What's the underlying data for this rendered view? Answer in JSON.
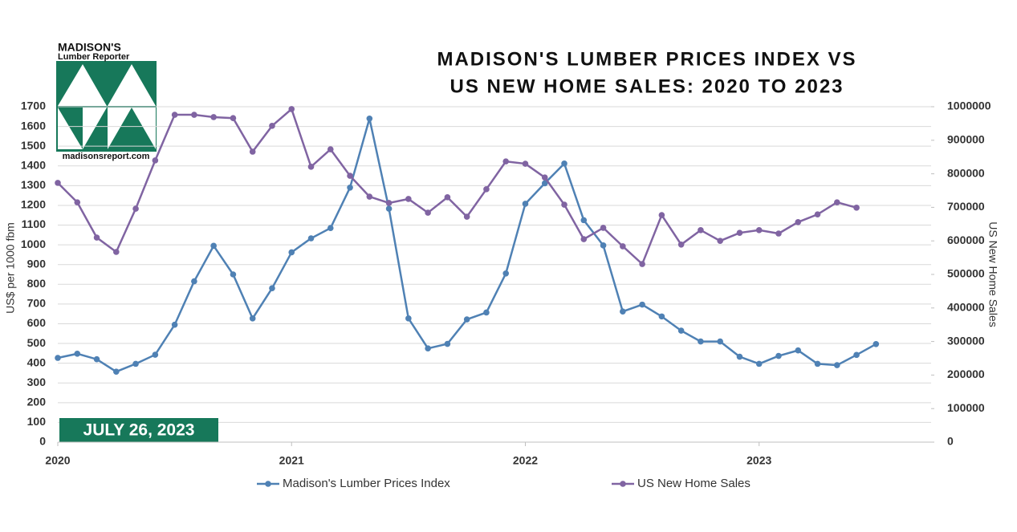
{
  "logo": {
    "name": "MADISON'S",
    "subtitle": "Lumber Reporter",
    "url": "madisonsreport.com"
  },
  "chart_data": {
    "type": "line",
    "title_lines": [
      "MADISON'S LUMBER PRICES INDEX VS",
      "US NEW HOME SALES: 2020 TO 2023"
    ],
    "date_label": "JULY 26, 2023",
    "ylabel": "US$ per 1000 fbm",
    "y2label": "US New Home Sales",
    "categories": [
      "2020",
      null,
      null,
      null,
      null,
      null,
      null,
      null,
      null,
      null,
      null,
      null,
      "2021",
      null,
      null,
      null,
      null,
      null,
      null,
      null,
      null,
      null,
      null,
      null,
      "2022",
      null,
      null,
      null,
      null,
      null,
      null,
      null,
      null,
      null,
      null,
      null,
      "2023",
      null,
      null,
      null,
      null,
      null,
      null
    ],
    "ylim": [
      0,
      1700
    ],
    "yticks": [
      0,
      100,
      200,
      300,
      400,
      500,
      600,
      700,
      800,
      900,
      1000,
      1100,
      1200,
      1300,
      1400,
      1500,
      1600,
      1700
    ],
    "y2lim": [
      0,
      1000000
    ],
    "y2ticks": [
      0,
      100000,
      200000,
      300000,
      400000,
      500000,
      600000,
      700000,
      800000,
      900000,
      1000000
    ],
    "grid": true,
    "legend": "bottom",
    "series": [
      {
        "name": "Madison's Lumber Prices Index",
        "color": "#4f81b4",
        "values": [
          427,
          448,
          420,
          357,
          397,
          443,
          595,
          815,
          995,
          850,
          627,
          780,
          962,
          1033,
          1085,
          1290,
          1640,
          1183,
          627,
          475,
          498,
          622,
          657,
          855,
          1208,
          1312,
          1412,
          1125,
          997,
          662,
          697,
          637,
          565,
          510,
          510,
          433,
          397,
          437,
          465,
          397,
          390,
          442,
          497
        ]
      },
      {
        "name": "US New Home Sales",
        "color": "#8064a2",
        "axis": "y2",
        "values": [
          773000,
          715000,
          610000,
          567000,
          696000,
          840000,
          976000,
          976000,
          969000,
          966000,
          866000,
          943000,
          993000,
          821000,
          873000,
          794000,
          732000,
          713000,
          725000,
          684000,
          730000,
          672000,
          754000,
          837000,
          830000,
          789000,
          708000,
          605000,
          639000,
          584000,
          531000,
          677000,
          589000,
          632000,
          600000,
          624000,
          632000,
          622000,
          656000,
          679000,
          715000,
          699000,
          null
        ]
      }
    ]
  }
}
